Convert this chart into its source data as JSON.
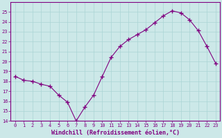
{
  "x": [
    0,
    1,
    2,
    3,
    4,
    5,
    6,
    7,
    8,
    9,
    10,
    11,
    12,
    13,
    14,
    15,
    16,
    17,
    18,
    19,
    20,
    21,
    22,
    23
  ],
  "y": [
    18.5,
    18.1,
    18.0,
    17.7,
    17.5,
    16.6,
    15.9,
    14.0,
    15.4,
    16.6,
    18.5,
    20.4,
    21.5,
    22.2,
    22.7,
    23.2,
    23.9,
    24.6,
    25.1,
    24.9,
    24.2,
    23.1,
    21.5,
    19.8
  ],
  "line_color": "#800080",
  "marker": "+",
  "marker_size": 4,
  "bg_color": "#cce8e8",
  "grid_color": "#aad4d4",
  "xlabel": "Windchill (Refroidissement éolien,°C)",
  "ylim": [
    14,
    26
  ],
  "xlim": [
    -0.5,
    23.5
  ],
  "yticks": [
    14,
    15,
    16,
    17,
    18,
    19,
    20,
    21,
    22,
    23,
    24,
    25
  ],
  "xticks": [
    0,
    1,
    2,
    3,
    4,
    5,
    6,
    7,
    8,
    9,
    10,
    11,
    12,
    13,
    14,
    15,
    16,
    17,
    18,
    19,
    20,
    21,
    22,
    23
  ],
  "tick_label_color": "#800080",
  "tick_label_fontsize": 5.0,
  "xlabel_fontsize": 6.0,
  "spine_color": "#800080",
  "line_width": 0.8,
  "marker_lw": 1.0
}
